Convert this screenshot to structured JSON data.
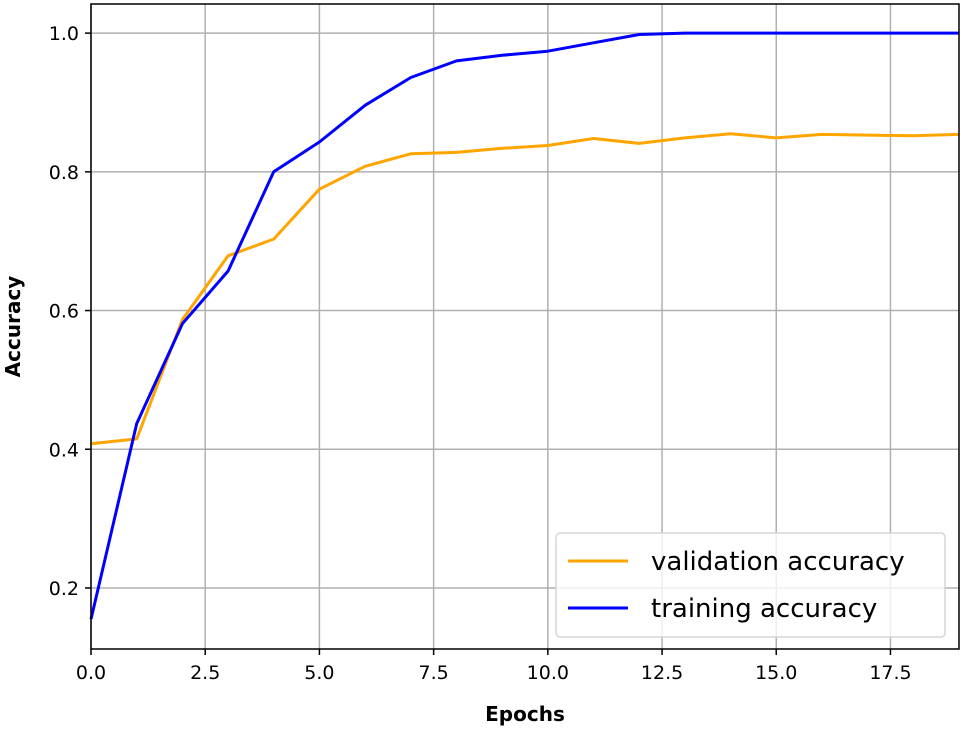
{
  "chart_data": {
    "type": "line",
    "title": "",
    "xlabel": "Epochs",
    "ylabel": "Accuracy",
    "xlim": [
      0,
      19
    ],
    "ylim": [
      0.112,
      1.042
    ],
    "xticks": [
      0.0,
      2.5,
      5.0,
      7.5,
      10.0,
      12.5,
      15.0,
      17.5
    ],
    "xtick_labels": [
      "0.0",
      "2.5",
      "5.0",
      "7.5",
      "10.0",
      "12.5",
      "15.0",
      "17.5"
    ],
    "yticks": [
      0.2,
      0.4,
      0.6,
      0.8,
      1.0
    ],
    "ytick_labels": [
      "0.2",
      "0.4",
      "0.6",
      "0.8",
      "1.0"
    ],
    "grid": true,
    "legend_position": "lower right",
    "x": [
      0,
      1,
      2,
      3,
      4,
      5,
      6,
      7,
      8,
      9,
      10,
      11,
      12,
      13,
      14,
      15,
      16,
      17,
      18,
      19
    ],
    "series": [
      {
        "name": "validation accuracy",
        "color": "#ffa500",
        "values": [
          0.408,
          0.415,
          0.587,
          0.679,
          0.703,
          0.775,
          0.808,
          0.826,
          0.828,
          0.834,
          0.838,
          0.848,
          0.841,
          0.849,
          0.855,
          0.849,
          0.854,
          0.853,
          0.852,
          0.854
        ]
      },
      {
        "name": "training accuracy",
        "color": "#0000ff",
        "values": [
          0.155,
          0.437,
          0.581,
          0.657,
          0.8,
          0.843,
          0.896,
          0.936,
          0.96,
          0.968,
          0.974,
          0.986,
          0.998,
          1.0,
          1.0,
          1.0,
          1.0,
          1.0,
          1.0,
          1.0
        ]
      }
    ]
  }
}
